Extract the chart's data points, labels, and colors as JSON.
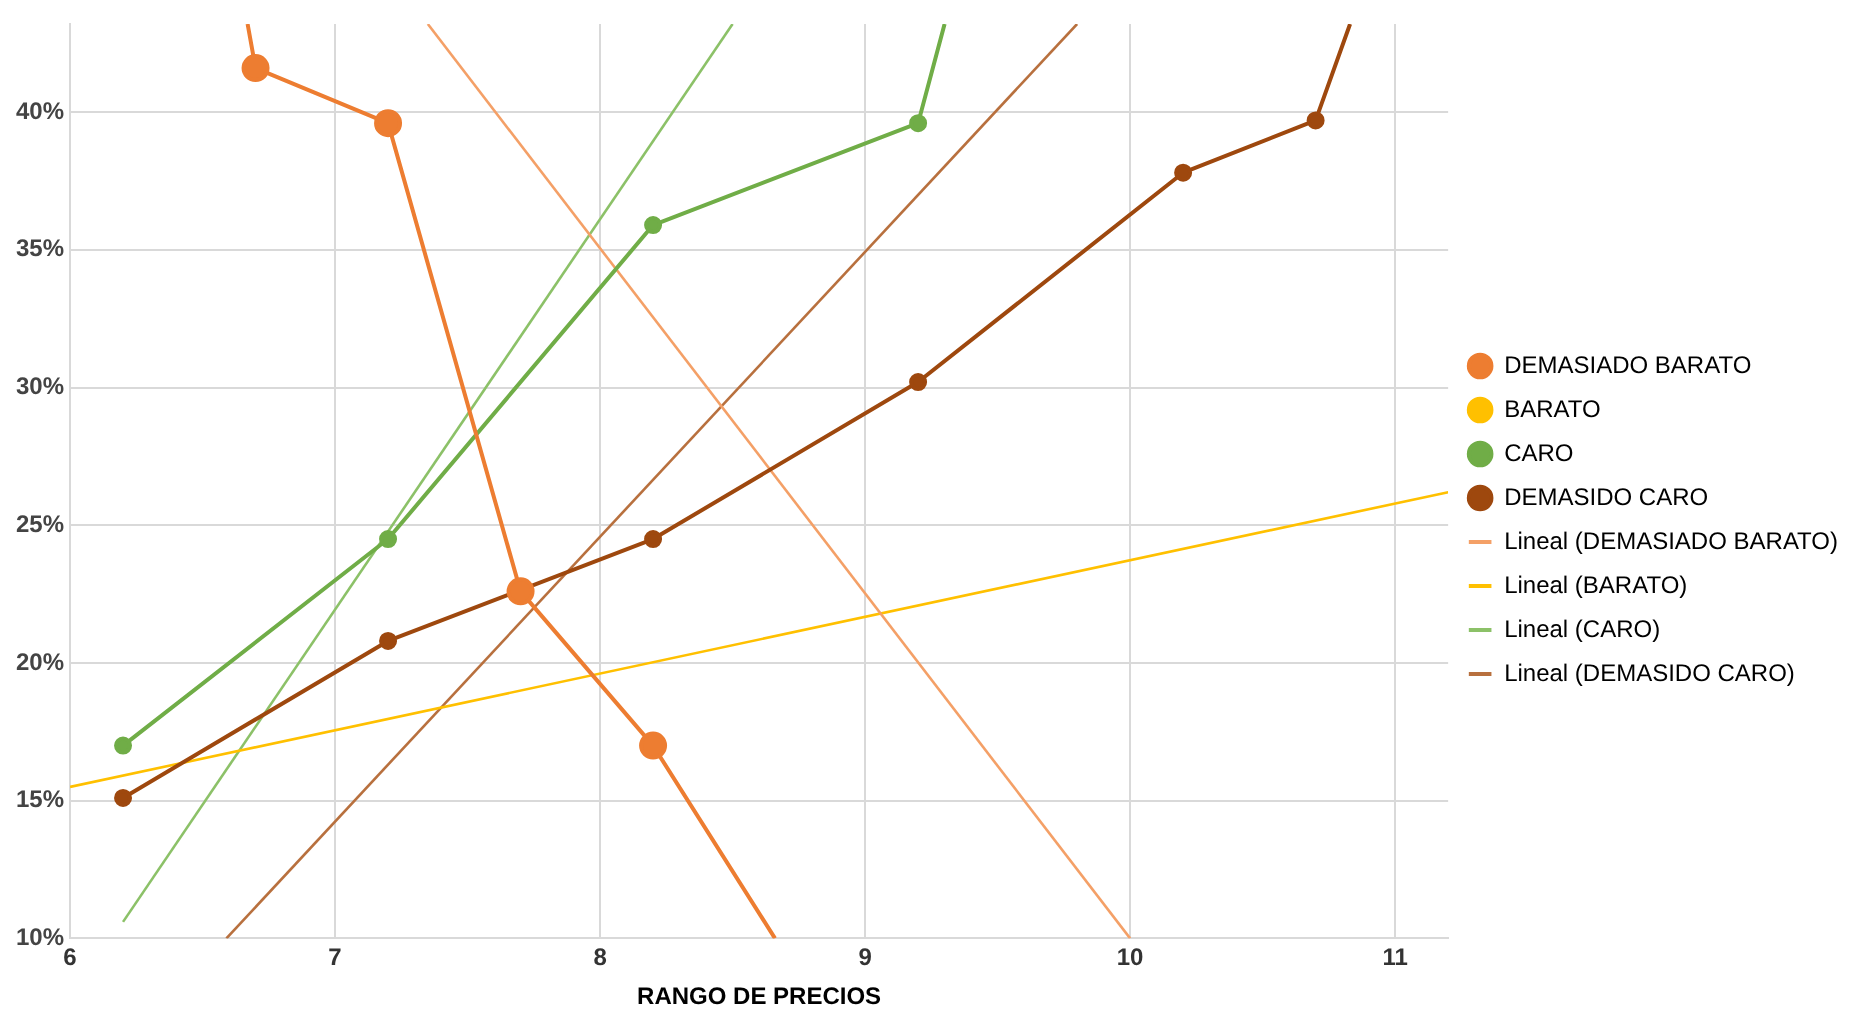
{
  "chart_data": {
    "type": "line",
    "xlabel": "RANGO DE PRECIOS",
    "xlim": [
      6,
      11.2
    ],
    "xticks": [
      6,
      7,
      8,
      9,
      10,
      11
    ],
    "ylim": [
      10,
      43.2
    ],
    "yticks": [
      {
        "value": 10,
        "label": "10%"
      },
      {
        "value": 15,
        "label": "15%"
      },
      {
        "value": 20,
        "label": "20%"
      },
      {
        "value": 25,
        "label": "25%"
      },
      {
        "value": 30,
        "label": "30%"
      },
      {
        "value": 35,
        "label": "35%"
      },
      {
        "value": 40,
        "label": "40%"
      }
    ],
    "grid": true,
    "legend": "right",
    "line_style": "solid",
    "series": [
      {
        "name": "DEMASIADO BARATO",
        "color": "#ed7d31",
        "marker": "circle",
        "x": [
          6.67,
          6.7,
          7.2,
          7.7,
          8.2,
          8.66
        ],
        "values": [
          43.2,
          41.6,
          39.6,
          22.6,
          17.0,
          10
        ]
      },
      {
        "name": "BARATO",
        "color": "#ffc000",
        "marker": "circle"
      },
      {
        "name": "CARO",
        "color": "#70ad47",
        "marker": "circle",
        "x": [
          6.2,
          7.2,
          8.2,
          9.2,
          9.3
        ],
        "values": [
          17.0,
          24.5,
          35.9,
          39.6,
          43.2
        ]
      },
      {
        "name": "DEMASIDO CARO",
        "color": "#9e480e",
        "marker": "circle",
        "x": [
          6.2,
          7.2,
          8.2,
          9.2,
          10.2,
          10.7,
          10.83
        ],
        "values": [
          15.1,
          20.8,
          24.5,
          30.2,
          37.8,
          39.7,
          43.2
        ]
      },
      {
        "name": "Lineal (DEMASIADO BARATO)",
        "color": "#f4a067",
        "marker": "none",
        "x": [
          7.35,
          10.0
        ],
        "values": [
          43.2,
          10
        ]
      },
      {
        "name": "Lineal (BARATO)",
        "color": "#ffc000",
        "marker": "none",
        "x": [
          6,
          11.2
        ],
        "values": [
          15.5,
          26.2
        ]
      },
      {
        "name": "Lineal (CARO)",
        "color": "#8cc168",
        "marker": "none",
        "x": [
          6.2,
          8.5
        ],
        "values": [
          10.6,
          43.2
        ]
      },
      {
        "name": "Lineal (DEMASIDO CARO)",
        "color": "#b8703e",
        "marker": "none",
        "x": [
          6.59,
          9.8
        ],
        "values": [
          10,
          43.2
        ]
      }
    ]
  }
}
